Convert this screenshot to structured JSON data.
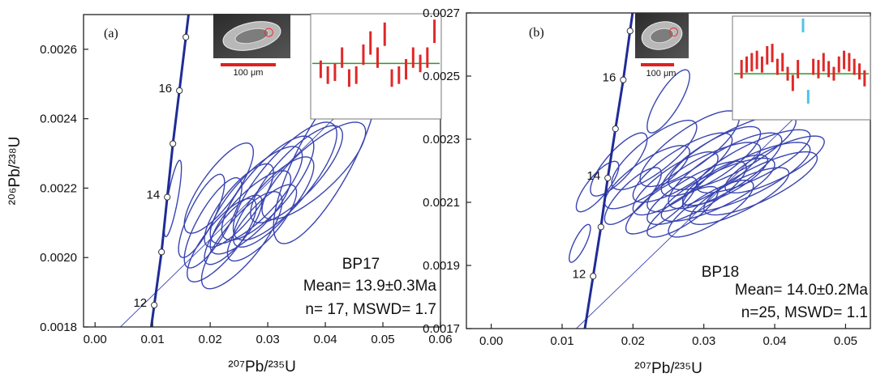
{
  "chart_data": [
    {
      "type": "concordia",
      "panel_label": "(a)",
      "xlabel": "²⁰⁷Pb/²³⁵U",
      "ylabel": "²⁰⁶Pb/²³⁸U",
      "xlim": [
        -0.002,
        0.06
      ],
      "xticks": [
        {
          "value": 0,
          "label": "0.00"
        },
        0.01,
        0.02,
        0.03,
        0.04,
        0.05,
        0.06
      ],
      "ylim": [
        0.0018,
        0.0027
      ],
      "yticks": [
        0.0018,
        {
          "value": 0.002,
          "label": "0.0020"
        },
        0.0022,
        0.0024,
        0.0026
      ],
      "concordia": {
        "x": [
          0.01028,
          0.01155,
          0.01254,
          0.01352,
          0.01465,
          0.01577
        ],
        "y": [
          0.001863,
          0.002016,
          0.002174,
          0.002328,
          0.002481,
          0.002635
        ],
        "labels": [
          "12",
          null,
          "14",
          null,
          "16",
          null
        ],
        "color": "#1f2c96"
      },
      "reference_line": {
        "x": [
          0.0044,
          0.06
        ],
        "y": [
          0.0018,
          0.0027
        ]
      },
      "ellipses": {
        "color": "#3a45b0",
        "x": [
          0.0135,
          0.0185,
          0.0205,
          0.022,
          0.0215,
          0.024,
          0.025,
          0.0255,
          0.027,
          0.028,
          0.029,
          0.03,
          0.031,
          0.033,
          0.035,
          0.038,
          0.04
        ],
        "y": [
          0.00217,
          0.00212,
          0.0021,
          0.00205,
          0.0022,
          0.00208,
          0.00215,
          0.00205,
          0.00213,
          0.00218,
          0.0021,
          0.0022,
          0.00216,
          0.00222,
          0.00224,
          0.00225,
          0.00229
        ],
        "x_err": [
          0.0015,
          0.004,
          0.005,
          0.006,
          0.006,
          0.005,
          0.006,
          0.007,
          0.007,
          0.008,
          0.006,
          0.008,
          0.007,
          0.009,
          0.008,
          0.009,
          0.009
        ],
        "y_err": [
          0.00011,
          0.00012,
          0.00013,
          0.00012,
          0.00013,
          0.0001,
          0.00012,
          0.00014,
          0.00012,
          0.00014,
          0.00011,
          0.00015,
          0.00013,
          0.00017,
          0.00014,
          0.00014,
          0.00025
        ]
      },
      "annotations": [
        "BP17",
        "Mean= 13.9±0.3Ma",
        "n= 17, MSWD= 1.7"
      ],
      "inset_image": {
        "scale_label": "100 μm"
      },
      "inset": {
        "ylim": [
          12.0,
          15.6
        ],
        "mean": 13.9,
        "mean_color": "#2a9a2a",
        "values": [
          13.7,
          13.5,
          13.6,
          14.1,
          13.4,
          13.5,
          14.2,
          14.6,
          14.1,
          14.9,
          13.4,
          13.5,
          13.7,
          14.1,
          13.9,
          14.1,
          15.0
        ],
        "errors": [
          0.3,
          0.3,
          0.3,
          0.35,
          0.3,
          0.3,
          0.35,
          0.4,
          0.35,
          0.4,
          0.3,
          0.3,
          0.35,
          0.35,
          0.3,
          0.35,
          0.4
        ],
        "colors": [
          "#e02828",
          "#e02828",
          "#e02828",
          "#e02828",
          "#e02828",
          "#e02828",
          "#e02828",
          "#e02828",
          "#e02828",
          "#e02828",
          "#e02828",
          "#e02828",
          "#e02828",
          "#e02828",
          "#e02828",
          "#e02828",
          "#e02828"
        ]
      }
    },
    {
      "type": "concordia",
      "panel_label": "(b)",
      "xlabel": "²⁰⁷Pb/²³⁵U",
      "xlim": [
        -0.0035,
        0.0535
      ],
      "xticks": [
        {
          "value": 0,
          "label": "0.00"
        },
        0.01,
        0.02,
        0.03,
        0.04,
        0.05
      ],
      "ylim": [
        0.0017,
        0.0027
      ],
      "yticks": [
        0.0017,
        0.0019,
        0.0021,
        0.0023,
        0.0025,
        0.0027
      ],
      "concordia": {
        "x": [
          0.01438,
          0.01548,
          0.01644,
          0.01753,
          0.01863,
          0.01959
        ],
        "y": [
          0.001866,
          0.002022,
          0.002177,
          0.002333,
          0.002488,
          0.002643
        ],
        "labels": [
          "12",
          null,
          "14",
          null,
          "16",
          null
        ],
        "color": "#1f2c96"
      },
      "reference_line": {
        "x": [
          0.012,
          0.0535
        ],
        "y": [
          0.0017,
          0.0026
        ]
      },
      "ellipses": {
        "color": "#3a45b0",
        "x": [
          0.0125,
          0.015,
          0.018,
          0.02,
          0.022,
          0.023,
          0.024,
          0.025,
          0.026,
          0.027,
          0.027,
          0.028,
          0.029,
          0.03,
          0.031,
          0.031,
          0.032,
          0.033,
          0.034,
          0.035,
          0.036,
          0.037,
          0.038,
          0.04,
          0.033
        ],
        "y": [
          0.00197,
          0.00215,
          0.00222,
          0.00212,
          0.00218,
          0.00225,
          0.00209,
          0.00242,
          0.00216,
          0.00221,
          0.00207,
          0.00227,
          0.00213,
          0.00218,
          0.00223,
          0.00208,
          0.00214,
          0.0022,
          0.00226,
          0.00212,
          0.00218,
          0.00223,
          0.00216,
          0.00222,
          0.00217
        ],
        "x_err": [
          0.0015,
          0.003,
          0.004,
          0.004,
          0.006,
          0.006,
          0.005,
          0.003,
          0.006,
          0.007,
          0.005,
          0.007,
          0.007,
          0.008,
          0.007,
          0.006,
          0.008,
          0.008,
          0.009,
          0.007,
          0.009,
          0.008,
          0.008,
          0.007,
          0.006
        ],
        "y_err": [
          6e-05,
          8e-05,
          0.0001,
          9e-05,
          0.0001,
          0.00011,
          9e-05,
          0.0001,
          0.0001,
          0.00011,
          8e-05,
          0.00012,
          0.0001,
          0.00011,
          0.00011,
          9e-05,
          0.0001,
          0.00012,
          0.00012,
          9e-05,
          0.00011,
          0.0001,
          0.0001,
          9e-05,
          8e-05
        ]
      },
      "annotations": [
        "BP18",
        "Mean= 14.0±0.2Ma",
        "n=25, MSWD= 1.1"
      ],
      "inset_image": {
        "scale_label": "100 μm"
      },
      "inset": {
        "ylim": [
          12.0,
          16.5
        ],
        "mean": 14.0,
        "mean_color": "#2a9a2a",
        "values": [
          14.2,
          14.4,
          14.5,
          14.6,
          14.4,
          14.8,
          14.9,
          14.3,
          14.5,
          14.0,
          13.6,
          14.2,
          16.1,
          13.0,
          14.3,
          14.2,
          14.5,
          14.2,
          14.0,
          14.4,
          14.6,
          14.5,
          14.3,
          14.1,
          13.8
        ],
        "errors": [
          0.4,
          0.35,
          0.4,
          0.4,
          0.35,
          0.4,
          0.4,
          0.35,
          0.4,
          0.3,
          0.35,
          0.4,
          0.3,
          0.3,
          0.35,
          0.4,
          0.4,
          0.35,
          0.3,
          0.35,
          0.4,
          0.4,
          0.35,
          0.35,
          0.35
        ],
        "colors": [
          "#e02828",
          "#e02828",
          "#e02828",
          "#e02828",
          "#e02828",
          "#e02828",
          "#e02828",
          "#e02828",
          "#e02828",
          "#e02828",
          "#e02828",
          "#e02828",
          "#4fc3e8",
          "#4fc3e8",
          "#e02828",
          "#e02828",
          "#e02828",
          "#e02828",
          "#e02828",
          "#e02828",
          "#e02828",
          "#e02828",
          "#e02828",
          "#e02828",
          "#e02828"
        ]
      }
    }
  ]
}
